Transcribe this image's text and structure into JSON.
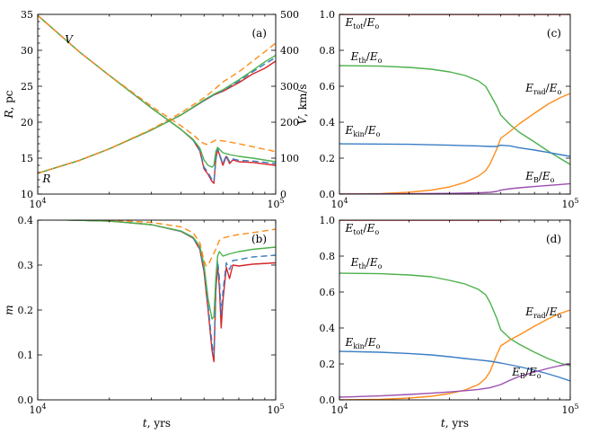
{
  "colors": {
    "red": "#d62728",
    "blue": "#3a7dc4",
    "green": "#4cb14c",
    "orange": "#ff8c1a",
    "purple": "#9b4fb0"
  },
  "chart_data": [
    {
      "id": "a",
      "type": "line",
      "panel_label": "(a)",
      "xscale": "log",
      "xlim": [
        10000,
        100000
      ],
      "xticks": [
        "10^4",
        "10^5"
      ],
      "ylabel": "R, pc",
      "ylim": [
        10,
        35
      ],
      "yticks": [
        10,
        15,
        20,
        25,
        30,
        35
      ],
      "y2label": "V, km/s",
      "y2lim": [
        0,
        500
      ],
      "y2ticks": [
        0,
        100,
        200,
        300,
        400,
        500
      ],
      "annotations": [
        {
          "text": "V",
          "x": 13500,
          "y": 31.0
        },
        {
          "text": "R",
          "x": 10900,
          "y": 11.6
        }
      ],
      "series": [
        {
          "label_group": "R",
          "color": "red",
          "dash": false,
          "axis": "left",
          "x": [
            10000,
            15000,
            20000,
            30000,
            40000,
            50000,
            55000,
            60000,
            70000,
            80000,
            90000,
            100000
          ],
          "y": [
            12.9,
            14.7,
            16.3,
            18.9,
            21.0,
            23.0,
            23.8,
            24.3,
            25.5,
            26.7,
            27.5,
            28.5
          ]
        },
        {
          "label_group": "R",
          "color": "blue",
          "dash": true,
          "axis": "left",
          "x": [
            10000,
            15000,
            20000,
            30000,
            40000,
            50000,
            55000,
            60000,
            70000,
            80000,
            90000,
            100000
          ],
          "y": [
            12.9,
            14.7,
            16.3,
            18.9,
            21.0,
            23.0,
            23.8,
            24.4,
            25.7,
            27.0,
            28.1,
            29.0
          ]
        },
        {
          "label_group": "R",
          "color": "green",
          "dash": false,
          "axis": "left",
          "x": [
            10000,
            15000,
            20000,
            30000,
            40000,
            50000,
            55000,
            60000,
            70000,
            80000,
            90000,
            100000
          ],
          "y": [
            12.9,
            14.7,
            16.3,
            18.9,
            21.0,
            23.1,
            23.9,
            24.5,
            25.9,
            27.2,
            28.4,
            29.3
          ]
        },
        {
          "label_group": "R",
          "color": "orange",
          "dash": true,
          "axis": "left",
          "x": [
            10000,
            15000,
            20000,
            30000,
            40000,
            50000,
            55000,
            60000,
            70000,
            80000,
            90000,
            100000
          ],
          "y": [
            12.9,
            14.7,
            16.3,
            19.0,
            21.3,
            23.4,
            24.5,
            25.6,
            27.0,
            28.5,
            29.8,
            31.0
          ]
        },
        {
          "label_group": "V",
          "color": "red",
          "dash": false,
          "axis": "right",
          "x": [
            10000,
            15000,
            20000,
            30000,
            40000,
            45000,
            48000,
            50000,
            52000,
            54000,
            55000,
            56000,
            57000,
            58000,
            60000,
            62000,
            64000,
            66000,
            70000,
            80000,
            100000
          ],
          "y": [
            497,
            395,
            330,
            240,
            180,
            150,
            120,
            70,
            55,
            35,
            30,
            95,
            125,
            110,
            80,
            105,
            85,
            95,
            90,
            88,
            80
          ]
        },
        {
          "label_group": "V",
          "color": "blue",
          "dash": true,
          "axis": "right",
          "x": [
            10000,
            15000,
            20000,
            30000,
            40000,
            45000,
            48000,
            50000,
            52000,
            54000,
            55000,
            56000,
            57000,
            58000,
            60000,
            62000,
            64000,
            66000,
            70000,
            80000,
            100000
          ],
          "y": [
            497,
            395,
            330,
            240,
            180,
            150,
            122,
            75,
            60,
            40,
            35,
            98,
            127,
            112,
            85,
            108,
            90,
            98,
            94,
            92,
            85
          ]
        },
        {
          "label_group": "V",
          "color": "green",
          "dash": false,
          "axis": "right",
          "x": [
            10000,
            15000,
            20000,
            30000,
            40000,
            45000,
            48000,
            50000,
            52000,
            54000,
            55000,
            56000,
            57000,
            58000,
            60000,
            64000,
            70000,
            80000,
            100000
          ],
          "y": [
            497,
            395,
            330,
            240,
            180,
            152,
            128,
            95,
            80,
            75,
            80,
            118,
            130,
            125,
            115,
            110,
            105,
            100,
            90
          ]
        },
        {
          "label_group": "V",
          "color": "orange",
          "dash": true,
          "axis": "right",
          "x": [
            10000,
            15000,
            20000,
            30000,
            40000,
            45000,
            48000,
            50000,
            52000,
            54000,
            56000,
            60000,
            70000,
            80000,
            100000
          ],
          "y": [
            497,
            395,
            330,
            245,
            190,
            165,
            148,
            140,
            138,
            145,
            150,
            148,
            140,
            132,
            118
          ]
        }
      ]
    },
    {
      "id": "b",
      "type": "line",
      "panel_label": "(b)",
      "xscale": "log",
      "xlim": [
        10000,
        100000
      ],
      "xticks": [
        "10^4",
        "10^5"
      ],
      "xlabel": "t, yrs",
      "ylabel": "m",
      "ylim": [
        0.0,
        0.4
      ],
      "yticks": [
        "0.0",
        "0.1",
        "0.2",
        "0.3",
        "0.4"
      ],
      "series": [
        {
          "color": "red",
          "dash": false,
          "x": [
            10000,
            20000,
            30000,
            40000,
            45000,
            48000,
            50000,
            52000,
            54000,
            55000,
            56000,
            57000,
            58000,
            59000,
            60000,
            62000,
            64000,
            66000,
            70000,
            80000,
            100000
          ],
          "y": [
            0.402,
            0.398,
            0.39,
            0.375,
            0.36,
            0.335,
            0.285,
            0.2,
            0.11,
            0.085,
            0.24,
            0.3,
            0.25,
            0.16,
            0.22,
            0.295,
            0.27,
            0.3,
            0.298,
            0.302,
            0.305
          ]
        },
        {
          "color": "blue",
          "dash": true,
          "x": [
            10000,
            20000,
            30000,
            40000,
            45000,
            48000,
            50000,
            52000,
            54000,
            55000,
            56000,
            57000,
            58000,
            59000,
            60000,
            62000,
            64000,
            66000,
            70000,
            80000,
            100000
          ],
          "y": [
            0.402,
            0.398,
            0.39,
            0.375,
            0.36,
            0.337,
            0.29,
            0.21,
            0.125,
            0.1,
            0.25,
            0.31,
            0.27,
            0.19,
            0.24,
            0.305,
            0.29,
            0.31,
            0.312,
            0.318,
            0.322
          ]
        },
        {
          "color": "green",
          "dash": false,
          "x": [
            10000,
            20000,
            30000,
            40000,
            45000,
            48000,
            50000,
            52000,
            54000,
            55000,
            56000,
            57000,
            58000,
            60000,
            64000,
            70000,
            80000,
            100000
          ],
          "y": [
            0.402,
            0.398,
            0.39,
            0.376,
            0.362,
            0.342,
            0.3,
            0.225,
            0.18,
            0.185,
            0.27,
            0.32,
            0.33,
            0.32,
            0.325,
            0.33,
            0.335,
            0.34
          ]
        },
        {
          "color": "orange",
          "dash": true,
          "x": [
            10000,
            20000,
            30000,
            40000,
            45000,
            48000,
            50000,
            51000,
            52000,
            54000,
            56000,
            58000,
            60000,
            65000,
            70000,
            80000,
            100000
          ],
          "y": [
            0.402,
            0.4,
            0.395,
            0.385,
            0.372,
            0.35,
            0.31,
            0.298,
            0.3,
            0.318,
            0.335,
            0.355,
            0.36,
            0.365,
            0.368,
            0.372,
            0.38
          ]
        }
      ]
    },
    {
      "id": "c",
      "type": "line",
      "panel_label": "(c)",
      "xscale": "log",
      "xlim": [
        10000,
        100000
      ],
      "xticks": [
        "10^4",
        "10^5"
      ],
      "ylim": [
        0.0,
        1.0
      ],
      "yticks": [
        "0.0",
        "0.2",
        "0.4",
        "0.6",
        "0.8",
        "1.0"
      ],
      "labels": [
        {
          "text": "Etot/Eo",
          "sub": "tot",
          "color_key": "red",
          "x": 10600,
          "y": 0.935
        },
        {
          "text": "Eth/Eo",
          "sub": "th",
          "color_key": "green",
          "x": 11200,
          "y": 0.745
        },
        {
          "text": "Erad/Eo",
          "sub": "rad",
          "color_key": "orange",
          "x": 64000,
          "y": 0.57
        },
        {
          "text": "Ekin/Eo",
          "sub": "kin",
          "color_key": "blue",
          "x": 10600,
          "y": 0.335
        },
        {
          "text": "EB/Eo",
          "sub": "B",
          "color_key": "purple",
          "x": 64000,
          "y": 0.08
        }
      ],
      "series": [
        {
          "name": "Etot/Eo",
          "color": "red",
          "x": [
            10000,
            100000
          ],
          "y": [
            1.0,
            1.0
          ]
        },
        {
          "name": "Eth/Eo",
          "color": "green",
          "x": [
            10000,
            15000,
            20000,
            25000,
            30000,
            35000,
            40000,
            43000,
            45000,
            48000,
            50000,
            55000,
            60000,
            70000,
            80000,
            90000,
            100000
          ],
          "y": [
            0.715,
            0.712,
            0.705,
            0.695,
            0.68,
            0.66,
            0.63,
            0.6,
            0.555,
            0.49,
            0.44,
            0.385,
            0.345,
            0.29,
            0.24,
            0.2,
            0.165
          ]
        },
        {
          "name": "Erad/Eo",
          "color": "orange",
          "x": [
            10000,
            15000,
            20000,
            25000,
            30000,
            35000,
            40000,
            43000,
            45000,
            48000,
            50000,
            55000,
            60000,
            70000,
            80000,
            90000,
            100000
          ],
          "y": [
            0.0,
            0.003,
            0.01,
            0.022,
            0.04,
            0.065,
            0.1,
            0.13,
            0.17,
            0.25,
            0.31,
            0.35,
            0.39,
            0.45,
            0.5,
            0.535,
            0.56
          ]
        },
        {
          "name": "Ekin/Eo",
          "color": "blue",
          "x": [
            10000,
            20000,
            30000,
            40000,
            45000,
            48000,
            50000,
            55000,
            60000,
            70000,
            80000,
            90000,
            100000
          ],
          "y": [
            0.28,
            0.277,
            0.272,
            0.268,
            0.265,
            0.265,
            0.272,
            0.268,
            0.258,
            0.245,
            0.232,
            0.22,
            0.21
          ]
        },
        {
          "name": "EB/Eo",
          "color": "purple",
          "x": [
            10000,
            20000,
            30000,
            40000,
            45000,
            48000,
            50000,
            55000,
            60000,
            70000,
            80000,
            90000,
            100000
          ],
          "y": [
            0.0,
            0.002,
            0.004,
            0.007,
            0.01,
            0.015,
            0.022,
            0.03,
            0.035,
            0.042,
            0.048,
            0.053,
            0.058
          ]
        }
      ]
    },
    {
      "id": "d",
      "type": "line",
      "panel_label": "(d)",
      "xscale": "log",
      "xlim": [
        10000,
        100000
      ],
      "xticks": [
        "10^4",
        "10^5"
      ],
      "xlabel": "t, yrs",
      "ylim": [
        0.0,
        1.0
      ],
      "yticks": [
        "0.0",
        "0.2",
        "0.4",
        "0.6",
        "0.8",
        "1.0"
      ],
      "labels": [
        {
          "text": "Etot/Eo",
          "sub": "tot",
          "color_key": "red",
          "x": 10600,
          "y": 0.935
        },
        {
          "text": "Eth/Eo",
          "sub": "th",
          "color_key": "green",
          "x": 11200,
          "y": 0.745
        },
        {
          "text": "Erad/Eo",
          "sub": "rad",
          "color_key": "orange",
          "x": 64000,
          "y": 0.47
        },
        {
          "text": "Ekin/Eo",
          "sub": "kin",
          "color_key": "blue",
          "x": 10600,
          "y": 0.3
        },
        {
          "text": "EB/Eo",
          "sub": "B",
          "color_key": "purple",
          "x": 56000,
          "y": 0.135
        }
      ],
      "series": [
        {
          "name": "Etot/Eo",
          "color": "red",
          "x": [
            10000,
            50000,
            100000
          ],
          "y": [
            1.0,
            1.0,
            1.01
          ]
        },
        {
          "name": "Eth/Eo",
          "color": "green",
          "x": [
            10000,
            15000,
            20000,
            25000,
            30000,
            35000,
            40000,
            43000,
            45000,
            48000,
            50000,
            55000,
            60000,
            70000,
            80000,
            90000,
            100000
          ],
          "y": [
            0.705,
            0.702,
            0.695,
            0.685,
            0.665,
            0.645,
            0.615,
            0.585,
            0.54,
            0.455,
            0.39,
            0.34,
            0.31,
            0.265,
            0.23,
            0.205,
            0.19
          ]
        },
        {
          "name": "Erad/Eo",
          "color": "orange",
          "x": [
            10000,
            15000,
            20000,
            25000,
            30000,
            35000,
            40000,
            43000,
            45000,
            48000,
            50000,
            55000,
            60000,
            70000,
            80000,
            90000,
            100000
          ],
          "y": [
            0.0,
            0.003,
            0.01,
            0.02,
            0.035,
            0.055,
            0.085,
            0.12,
            0.16,
            0.25,
            0.3,
            0.335,
            0.36,
            0.41,
            0.45,
            0.48,
            0.5
          ]
        },
        {
          "name": "Ekin/Eo",
          "color": "blue",
          "x": [
            10000,
            15000,
            20000,
            25000,
            30000,
            35000,
            40000,
            45000,
            50000,
            60000,
            70000,
            80000,
            90000,
            100000
          ],
          "y": [
            0.27,
            0.265,
            0.258,
            0.25,
            0.24,
            0.23,
            0.222,
            0.215,
            0.205,
            0.185,
            0.165,
            0.145,
            0.125,
            0.105
          ]
        },
        {
          "name": "EB/Eo",
          "color": "purple",
          "x": [
            10000,
            15000,
            20000,
            25000,
            30000,
            35000,
            40000,
            45000,
            50000,
            55000,
            60000,
            70000,
            80000,
            90000,
            100000
          ],
          "y": [
            0.015,
            0.022,
            0.03,
            0.037,
            0.044,
            0.051,
            0.058,
            0.068,
            0.085,
            0.11,
            0.13,
            0.155,
            0.175,
            0.19,
            0.2
          ]
        }
      ]
    }
  ]
}
